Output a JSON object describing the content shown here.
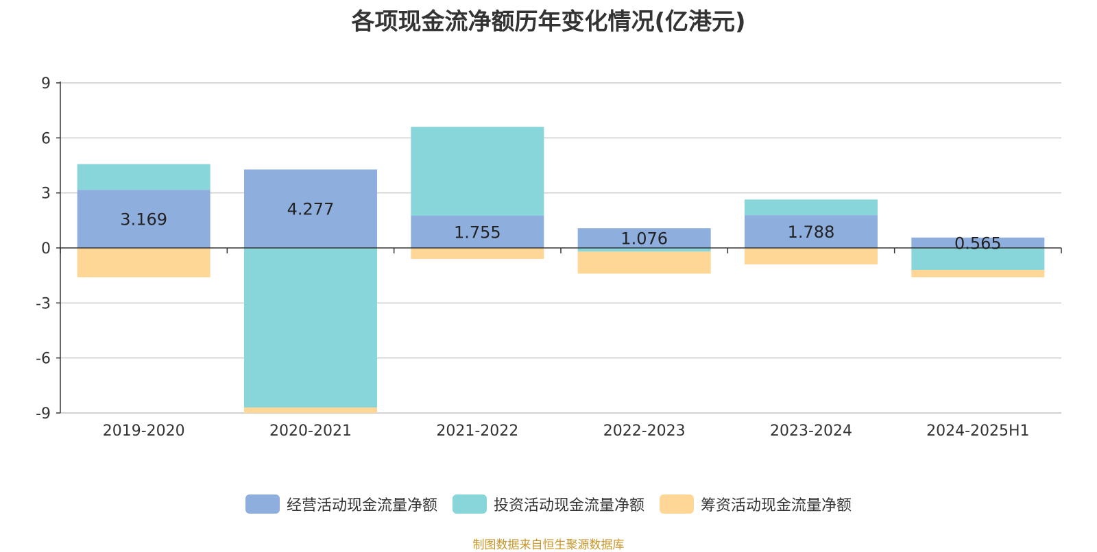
{
  "chart_data": {
    "type": "bar",
    "stacked": true,
    "title": "各项现金流净额历年变化情况(亿港元)",
    "categories": [
      "2019-2020",
      "2020-2021",
      "2021-2022",
      "2022-2023",
      "2023-2024",
      "2024-2025H1"
    ],
    "ylim": [
      -9,
      9
    ],
    "yticks": [
      "9",
      "6",
      "3",
      "0",
      "-3",
      "-6",
      "-9"
    ],
    "grid": true,
    "legend_position": "bottom",
    "series": [
      {
        "name": "经营活动现金流量净额",
        "color": "#8eaedd",
        "values": [
          3.169,
          4.277,
          1.755,
          1.076,
          1.788,
          0.565
        ],
        "labels": [
          "3.169",
          "4.277",
          "1.755",
          "1.076",
          "1.788",
          "0.565"
        ]
      },
      {
        "name": "投资活动现金流量净额",
        "color": "#88d6da",
        "values": [
          1.4,
          -8.7,
          4.85,
          -0.2,
          0.85,
          -1.2
        ]
      },
      {
        "name": "筹资活动现金流量净额",
        "color": "#fed797",
        "values": [
          -1.6,
          -0.3,
          -0.6,
          -1.2,
          -0.9,
          -0.4
        ]
      }
    ]
  },
  "source_note": "制图数据来自恒生聚源数据库"
}
